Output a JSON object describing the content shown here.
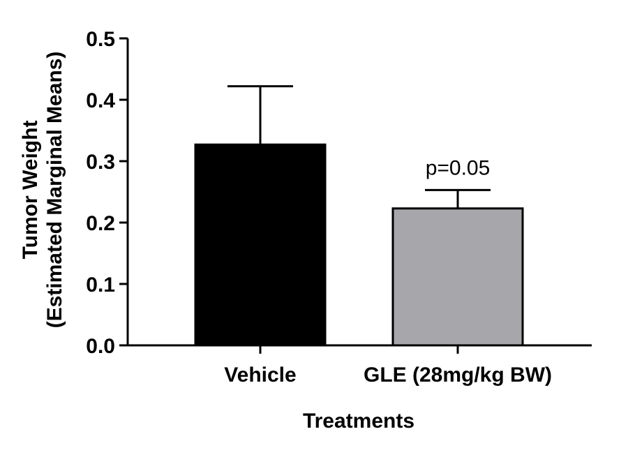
{
  "chart_data": {
    "type": "bar",
    "title": "",
    "xlabel": "Treatments",
    "ylabel_line1": "Tumor Weight",
    "ylabel_line2": "(Estimated Marginal Means)",
    "categories": [
      "Vehicle",
      "GLE (28mg/kg BW)"
    ],
    "values": [
      0.327,
      0.223
    ],
    "error_upper": [
      0.422,
      0.253
    ],
    "colors": [
      "#000000",
      "#a7a7ab"
    ],
    "ylim": [
      0.0,
      0.5
    ],
    "yticks": [
      0.0,
      0.1,
      0.2,
      0.3,
      0.4,
      0.5
    ],
    "ytick_labels": [
      "0.0",
      "0.1",
      "0.2",
      "0.3",
      "0.4",
      "0.5"
    ],
    "annotations": [
      {
        "category_index": 1,
        "text": "p=0.05"
      }
    ],
    "grid": false,
    "legend": "none"
  }
}
